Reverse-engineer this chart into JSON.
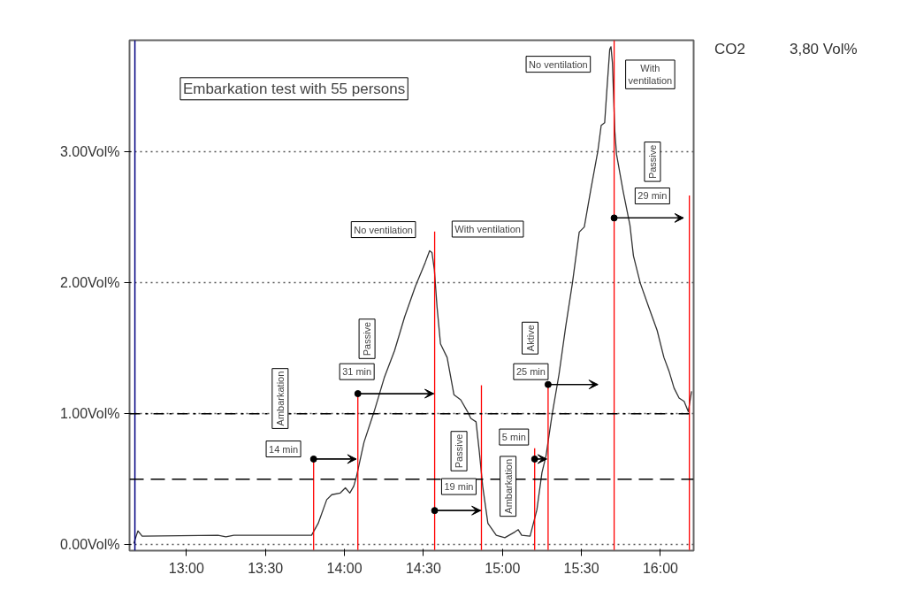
{
  "chart_data": {
    "type": "line",
    "title": "Embarkation test with 55 persons",
    "xlim": [
      12.64,
      16.21
    ],
    "ylim": [
      -0.045,
      3.85
    ],
    "xticks": [
      {
        "value": 13,
        "label": "13:00"
      },
      {
        "value": 13.5,
        "label": "13:30"
      },
      {
        "value": 14,
        "label": "14:00"
      },
      {
        "value": 14.5,
        "label": "14:30"
      },
      {
        "value": 15,
        "label": "15:00"
      },
      {
        "value": 15.5,
        "label": "15:30"
      },
      {
        "value": 16,
        "label": "16:00"
      }
    ],
    "yticks": [
      {
        "value": 0,
        "label": "0.00Vol%"
      },
      {
        "value": 1,
        "label": "1.00Vol%"
      },
      {
        "value": 2,
        "label": "2.00Vol%"
      },
      {
        "value": 3,
        "label": "3.00Vol%"
      }
    ],
    "grid": "y",
    "series": [
      {
        "color": "#333333",
        "x": [
          12.667,
          12.693,
          12.72,
          13.2,
          13.25,
          13.3,
          13.792,
          13.834,
          13.888,
          13.92,
          13.974,
          14.006,
          14.034,
          14.059,
          14.077,
          14.124,
          14.188,
          14.252,
          14.317,
          14.381,
          14.449,
          14.511,
          14.539,
          14.554,
          14.569,
          14.586,
          14.608,
          14.65,
          14.693,
          14.736,
          14.779,
          14.8,
          14.833,
          14.854,
          14.875,
          14.908,
          14.961,
          15.015,
          15.079,
          15.1,
          15.122,
          15.175,
          15.218,
          15.25,
          15.276,
          15.314,
          15.358,
          15.4,
          15.443,
          15.486,
          15.518,
          15.561,
          15.604,
          15.625,
          15.647,
          15.661,
          15.679,
          15.687,
          15.696,
          15.711,
          15.722,
          15.764,
          15.807,
          15.829,
          15.872,
          15.925,
          15.979,
          16.022,
          16.054,
          16.086,
          16.118,
          16.15,
          16.176,
          16.197
        ],
        "values": [
          0.01,
          0.106,
          0.065,
          0.072,
          0.06,
          0.072,
          0.072,
          0.163,
          0.344,
          0.382,
          0.395,
          0.434,
          0.395,
          0.447,
          0.525,
          0.783,
          1.016,
          1.274,
          1.481,
          1.739,
          1.972,
          2.153,
          2.244,
          2.23,
          2.101,
          1.817,
          1.533,
          1.429,
          1.145,
          1.106,
          1.016,
          0.964,
          0.938,
          0.706,
          0.447,
          0.163,
          0.072,
          0.054,
          0.098,
          0.115,
          0.072,
          0.065,
          0.266,
          0.55,
          0.68,
          0.99,
          1.3,
          1.662,
          1.998,
          2.386,
          2.425,
          2.722,
          3.006,
          3.2,
          3.22,
          3.471,
          3.78,
          3.8,
          3.679,
          3.161,
          2.98,
          2.696,
          2.438,
          2.205,
          1.998,
          1.817,
          1.636,
          1.429,
          1.326,
          1.196,
          1.119,
          1.094,
          1.016,
          1.171
        ]
      },
      {
        "color": "#ff0000",
        "x": [
          13.805,
          13.805
        ],
        "values": [
          -0.04,
          0.654
        ]
      },
      {
        "color": "#ff0000",
        "x": [
          14.085,
          14.085
        ],
        "values": [
          -0.04,
          1.153
        ]
      },
      {
        "color": "#ff0000",
        "x": [
          14.571,
          14.571
        ],
        "values": [
          -0.04,
          2.391
        ]
      },
      {
        "color": "#ff0000",
        "x": [
          14.867,
          14.867
        ],
        "values": [
          -0.04,
          1.217
        ]
      },
      {
        "color": "#ff0000",
        "x": [
          15.204,
          15.204
        ],
        "values": [
          -0.04,
          0.737
        ]
      },
      {
        "color": "#ff0000",
        "x": [
          15.289,
          15.289
        ],
        "values": [
          -0.04,
          1.223
        ]
      },
      {
        "color": "#ff0000",
        "x": [
          15.707,
          15.707
        ],
        "values": [
          -0.04,
          3.85
        ]
      },
      {
        "color": "#ff0000",
        "x": [
          16.183,
          16.183
        ],
        "values": [
          -0.04,
          2.665
        ]
      },
      {
        "color": "#000000",
        "marker": "circle",
        "x": [
          13.805,
          14.075
        ],
        "values": [
          0.654,
          0.654
        ]
      },
      {
        "color": "#000000",
        "marker": "circle",
        "x": [
          14.085,
          14.565
        ],
        "values": [
          1.153,
          1.153
        ]
      },
      {
        "color": "#000000",
        "marker": "circle",
        "x": [
          14.571,
          14.862
        ],
        "values": [
          0.261,
          0.261
        ]
      },
      {
        "color": "#000000",
        "marker": "circle",
        "x": [
          15.204,
          15.28
        ],
        "values": [
          0.654,
          0.654
        ]
      },
      {
        "color": "#000000",
        "marker": "circle",
        "x": [
          15.289,
          15.604
        ],
        "values": [
          1.223,
          1.223
        ]
      },
      {
        "color": "#000000",
        "marker": "circle",
        "x": [
          15.707,
          16.146
        ],
        "values": [
          2.494,
          2.494
        ]
      }
    ],
    "ref_lines": [
      {
        "axis": "x",
        "value": 12.674,
        "color": "#000080",
        "line_style": "solid"
      },
      {
        "axis": "y",
        "value": 1,
        "color": "#000000",
        "line_style": "dashdot"
      },
      {
        "axis": "y",
        "value": 0.5,
        "color": "#000000",
        "line_style": "dashed"
      }
    ],
    "annotations": [
      "Ambarkation",
      {
        "text": "14 min",
        "x": 13.614,
        "y": 0.731
      },
      "Passive",
      {
        "text": "31 min",
        "x": 14.079,
        "y": 1.321
      },
      "No ventilation",
      "With ventilation",
      "Passive",
      {
        "text": "19 min",
        "x": 14.724,
        "y": 0.444
      },
      "Ambarkation",
      {
        "text": "5 min",
        "x": 15.073,
        "y": 0.822
      },
      {
        "text": "Aktive",
        "x": 15.175,
        "y": 1.577
      },
      {
        "text": "25 min",
        "x": 15.18,
        "y": 1.321
      },
      "No ventilation",
      "With\nventilation",
      "Passive",
      {
        "text": "29 min",
        "x": 15.949,
        "y": 2.662
      },
      "CO2",
      "3,80 Vol%"
    ]
  }
}
